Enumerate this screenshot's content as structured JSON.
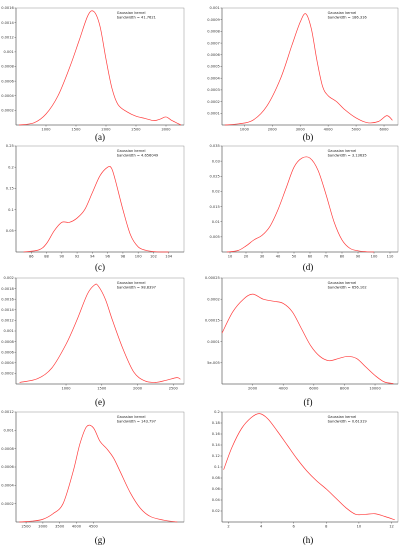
{
  "chart_data": [
    {
      "panel": "(a)",
      "type": "line",
      "legend": [
        "Gaussian kernel",
        "bandwidth = 41.7621"
      ],
      "xlim": [
        500,
        3300
      ],
      "ylim": [
        0,
        0.0016
      ],
      "x_ticks": [
        "1000",
        "1500",
        "2000",
        "2500",
        "3000"
      ],
      "y_ticks": [
        "0.0002",
        "0.0004",
        "0.0006",
        "0.0008",
        "0.001",
        "0.0012",
        "0.0014",
        "0.0016"
      ],
      "x": [
        550,
        800,
        1000,
        1200,
        1400,
        1550,
        1700,
        1800,
        1900,
        2000,
        2100,
        2200,
        2350,
        2500,
        2650,
        2800,
        2900,
        3000,
        3100,
        3200,
        3250
      ],
      "y": [
        0.0,
        3e-05,
        0.00015,
        0.0004,
        0.0008,
        0.00115,
        0.0015,
        0.00155,
        0.00135,
        0.0009,
        0.0005,
        0.00028,
        0.00018,
        0.00012,
        9e-05,
        6e-05,
        8e-05,
        0.00011,
        6e-05,
        2e-05,
        0.0
      ]
    },
    {
      "panel": "(b)",
      "type": "line",
      "legend": [
        "Gaussian kernel",
        "bandwidth = 186.316"
      ],
      "xlim": [
        200,
        6500
      ],
      "ylim": [
        0,
        0.001
      ],
      "x_ticks": [
        "1000",
        "2000",
        "3000",
        "4000",
        "5000",
        "6000"
      ],
      "y_ticks": [
        "0.0001",
        "0.0002",
        "0.0003",
        "0.0004",
        "0.0005",
        "0.0006",
        "0.0007",
        "0.0008",
        "0.0009",
        "0.001"
      ],
      "x": [
        300,
        800,
        1300,
        1800,
        2300,
        2700,
        3000,
        3200,
        3400,
        3600,
        3800,
        4000,
        4300,
        4600,
        5000,
        5400,
        5800,
        6100,
        6300
      ],
      "y": [
        0.0,
        1e-05,
        4e-05,
        0.00016,
        0.0004,
        0.00068,
        0.00088,
        0.00095,
        0.00082,
        0.00055,
        0.00033,
        0.00025,
        0.0002,
        0.00013,
        6e-05,
        2e-05,
        3e-05,
        8e-05,
        4e-05
      ]
    },
    {
      "panel": "(c)",
      "type": "line",
      "legend": [
        "Gaussian kernel",
        "bandwidth = 4.656049"
      ],
      "xlim": [
        84,
        106
      ],
      "ylim": [
        0,
        0.25
      ],
      "x_ticks": [
        "86",
        "88",
        "90",
        "92",
        "94",
        "96",
        "98",
        "100",
        "102",
        "104"
      ],
      "y_ticks": [
        "0.05",
        "0.1",
        "0.15",
        "0.2",
        "0.25"
      ],
      "x": [
        85,
        87,
        88,
        89,
        90,
        91,
        92,
        93,
        94,
        95,
        96,
        96.5,
        97,
        98,
        99,
        100,
        101,
        102,
        103,
        104
      ],
      "y": [
        0.0,
        0.005,
        0.02,
        0.05,
        0.07,
        0.07,
        0.08,
        0.1,
        0.14,
        0.18,
        0.2,
        0.198,
        0.17,
        0.1,
        0.04,
        0.012,
        0.004,
        0.001,
        0.0,
        0.0
      ]
    },
    {
      "panel": "(d)",
      "type": "line",
      "legend": [
        "Gaussian kernel",
        "bandwidth = 3.13635"
      ],
      "xlim": [
        5,
        115
      ],
      "ylim": [
        0,
        0.035
      ],
      "x_ticks": [
        "10",
        "20",
        "30",
        "40",
        "50",
        "60",
        "70",
        "80",
        "90",
        "100",
        "110"
      ],
      "y_ticks": [
        "0.005",
        "0.01",
        "0.015",
        "0.02",
        "0.025",
        "0.03",
        "0.035"
      ],
      "x": [
        8,
        15,
        20,
        25,
        30,
        35,
        40,
        45,
        50,
        55,
        60,
        65,
        70,
        75,
        80,
        85,
        90,
        95,
        100
      ],
      "y": [
        0.0,
        0.0005,
        0.002,
        0.004,
        0.0055,
        0.0085,
        0.014,
        0.021,
        0.028,
        0.031,
        0.031,
        0.027,
        0.019,
        0.01,
        0.004,
        0.0012,
        0.0004,
        0.0001,
        0.0
      ]
    },
    {
      "panel": "(e)",
      "type": "line",
      "legend": [
        "Gaussian kernel",
        "bandwidth = 98.8397"
      ],
      "xlim": [
        300,
        2650
      ],
      "ylim": [
        0,
        0.002
      ],
      "x_ticks": [
        "1000",
        "1500",
        "2000",
        "2500"
      ],
      "y_ticks": [
        "0.0002",
        "0.0004",
        "0.0006",
        "0.0008",
        "0.001",
        "0.0012",
        "0.0014",
        "0.0016",
        "0.0018",
        "0.002"
      ],
      "x": [
        350,
        600,
        800,
        1000,
        1150,
        1300,
        1400,
        1450,
        1550,
        1650,
        1800,
        1950,
        2100,
        2250,
        2400,
        2550,
        2600
      ],
      "y": [
        3e-05,
        0.0001,
        0.0003,
        0.00075,
        0.0012,
        0.0017,
        0.00187,
        0.00185,
        0.0016,
        0.0012,
        0.00065,
        0.00022,
        6e-05,
        3e-05,
        7e-05,
        0.00012,
        9e-05
      ]
    },
    {
      "panel": "(f)",
      "type": "line",
      "legend": [
        "Gaussian kernel",
        "bandwidth = 656.102"
      ],
      "xlim": [
        0,
        11500
      ],
      "ylim": [
        0,
        0.00025
      ],
      "x_ticks": [
        "2000",
        "4000",
        "6000",
        "8000",
        "10000"
      ],
      "y_ticks": [
        "5e-005",
        "0.0001",
        "0.00015",
        "0.0002",
        "0.00025"
      ],
      "x": [
        0,
        700,
        1400,
        2000,
        2700,
        3400,
        4000,
        4600,
        5200,
        5800,
        6400,
        7000,
        7600,
        8200,
        8800,
        9400,
        10000,
        10600,
        11200
      ],
      "y": [
        0.00012,
        0.00017,
        0.0002,
        0.000212,
        0.0002,
        0.000195,
        0.00019,
        0.00017,
        0.00013,
        9e-05,
        6.5e-05,
        5.5e-05,
        6e-05,
        6.5e-05,
        6e-05,
        4e-05,
        2e-05,
        5e-06,
        1e-06
      ]
    },
    {
      "panel": "(g)",
      "type": "line",
      "legend": [
        "Gaussian kernel",
        "bandwidth = 143.797"
      ],
      "xlim": [
        2200,
        7200
      ],
      "ylim": [
        0,
        0.0012
      ],
      "x_ticks": [
        "2500",
        "3000",
        "3500",
        "4000",
        "4500"
      ],
      "y_ticks": [
        "0.0002",
        "0.0004",
        "0.0006",
        "0.0008",
        "0.001",
        "0.0012"
      ],
      "x": [
        2300,
        2700,
        3000,
        3300,
        3600,
        3900,
        4100,
        4300,
        4500,
        4700,
        4900,
        5100,
        5300,
        5600,
        5900,
        6200,
        6600,
        7000
      ],
      "y": [
        0.0,
        1e-05,
        3e-05,
        9e-05,
        0.0002,
        0.00055,
        0.00085,
        0.00104,
        0.00103,
        0.00088,
        0.0008,
        0.0007,
        0.00055,
        0.00032,
        0.00015,
        6e-05,
        2e-05,
        0.0
      ]
    },
    {
      "panel": "(h)",
      "type": "line",
      "legend": [
        "Gaussian kernel",
        "bandwidth = 0.61319"
      ],
      "xlim": [
        1.6,
        12.4
      ],
      "ylim": [
        0,
        0.2
      ],
      "x_ticks": [
        "2",
        "4",
        "6",
        "8",
        "10",
        "12"
      ],
      "y_ticks": [
        "0.02",
        "0.04",
        "0.06",
        "0.08",
        "0.1",
        "0.12",
        "0.14",
        "0.16",
        "0.18",
        "0.2"
      ],
      "x": [
        1.7,
        2.2,
        2.8,
        3.4,
        3.9,
        4.4,
        5.0,
        5.6,
        6.2,
        6.8,
        7.4,
        8.0,
        8.6,
        9.2,
        9.8,
        10.4,
        11.0,
        11.6,
        12.2
      ],
      "y": [
        0.095,
        0.135,
        0.17,
        0.19,
        0.197,
        0.188,
        0.165,
        0.14,
        0.115,
        0.093,
        0.075,
        0.06,
        0.043,
        0.026,
        0.014,
        0.014,
        0.015,
        0.01,
        0.004
      ]
    }
  ]
}
